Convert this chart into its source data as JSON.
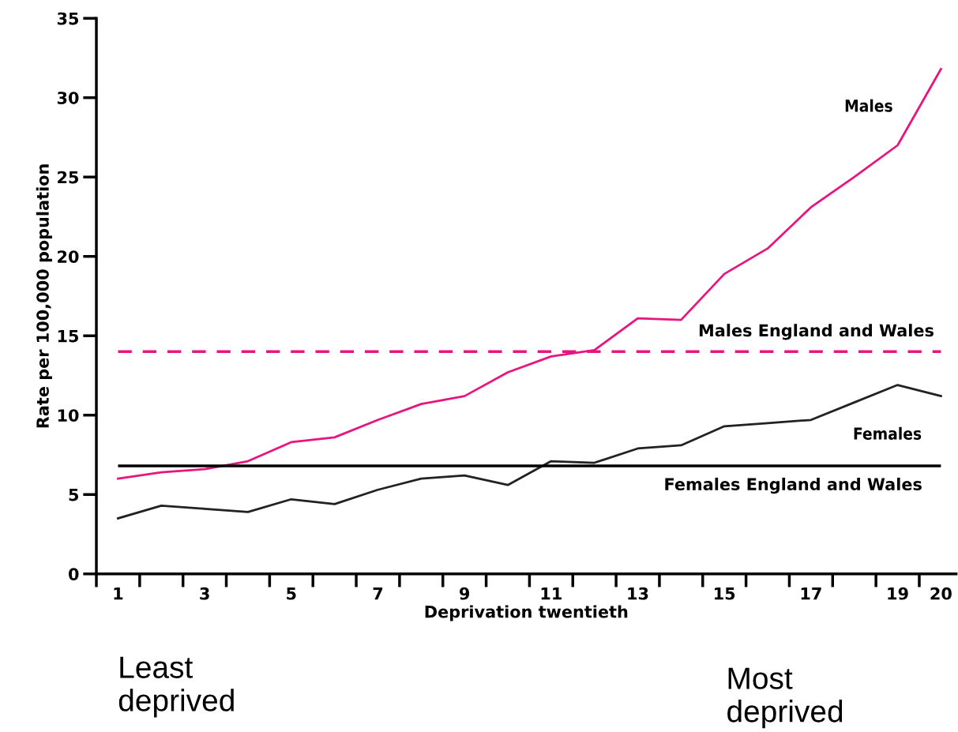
{
  "chart_data": {
    "type": "line",
    "xlabel": "Deprivation twentieth",
    "ylabel": "Rate per 100,000 population",
    "categories": [
      "1",
      null,
      "3",
      null,
      "5",
      null,
      "7",
      null,
      "9",
      null,
      "11",
      null,
      "13",
      null,
      "15",
      null,
      "17",
      null,
      "19",
      "20"
    ],
    "series": [
      {
        "name": "Males",
        "color": "#e8157f",
        "values": [
          6.0,
          6.4,
          6.6,
          7.1,
          8.3,
          8.6,
          9.7,
          10.7,
          11.2,
          12.7,
          13.7,
          14.1,
          16.1,
          16.0,
          18.9,
          20.5,
          23.1,
          25.0,
          27.0,
          31.8
        ]
      },
      {
        "name": "Females",
        "color": "#222222",
        "values": [
          3.5,
          4.3,
          4.1,
          3.9,
          4.7,
          4.4,
          5.3,
          6.0,
          6.2,
          5.6,
          7.1,
          7.0,
          7.9,
          8.1,
          9.3,
          9.5,
          9.7,
          10.8,
          11.9,
          11.2
        ]
      }
    ],
    "ref_lines": [
      {
        "axis": "y",
        "value": 14.0,
        "label": "Males England and Wales",
        "color": "#e8157f",
        "line_style": "dashed"
      },
      {
        "axis": "y",
        "value": 6.8,
        "label": "Females England and Wales",
        "color": "#000000",
        "line_style": "solid"
      }
    ],
    "ylim": [
      0,
      35
    ],
    "yticks": [
      0,
      5,
      10,
      15,
      20,
      25,
      30,
      35
    ],
    "annotations": [
      "Least\ndeprived",
      "Most\ndeprived"
    ],
    "grid": false,
    "legend": false,
    "marker": "none",
    "line_style": "solid"
  }
}
